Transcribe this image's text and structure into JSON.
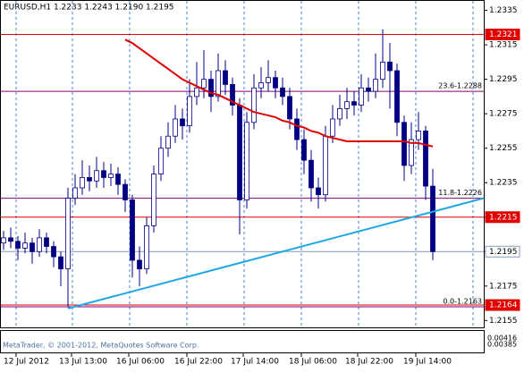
{
  "chart_data": {
    "type": "candlestick",
    "title": "EURUSD,H1  1.2233 1.2243 1.2190 1.2195",
    "ylim": [
      1.215,
      1.2341
    ],
    "yticks": [
      1.2335,
      1.2315,
      1.2295,
      1.2275,
      1.2255,
      1.2235,
      1.2215,
      1.2195,
      1.2175,
      1.2155
    ],
    "x_labels": [
      "12 Jul 2012",
      "13 Jul 13:00",
      "16 Jul 06:00",
      "16 Jul 22:00",
      "17 Jul 14:00",
      "18 Jul 06:00",
      "18 Jul 22:00",
      "19 Jul 14:00"
    ],
    "up_color": "#ffffff",
    "down_color": "#000080",
    "outline_color": "#000080",
    "candles": [
      [
        1.22,
        1.2207,
        1.2196,
        1.2203
      ],
      [
        1.2203,
        1.2209,
        1.2197,
        1.2201
      ],
      [
        1.2201,
        1.2204,
        1.219,
        1.2197
      ],
      [
        1.2197,
        1.2206,
        1.2194,
        1.22
      ],
      [
        1.22,
        1.2203,
        1.2188,
        1.2195
      ],
      [
        1.2195,
        1.2208,
        1.2192,
        1.2203
      ],
      [
        1.2203,
        1.2206,
        1.2194,
        1.2198
      ],
      [
        1.2198,
        1.2201,
        1.2186,
        1.2192
      ],
      [
        1.2192,
        1.2195,
        1.2175,
        1.2185
      ],
      [
        1.2185,
        1.2232,
        1.2163,
        1.2226
      ],
      [
        1.2226,
        1.224,
        1.2222,
        1.2232
      ],
      [
        1.2232,
        1.2248,
        1.2228,
        1.2238
      ],
      [
        1.2238,
        1.2245,
        1.223,
        1.2236
      ],
      [
        1.2236,
        1.225,
        1.2232,
        1.2242
      ],
      [
        1.2242,
        1.2247,
        1.2232,
        1.2238
      ],
      [
        1.2238,
        1.2246,
        1.2233,
        1.224
      ],
      [
        1.224,
        1.2244,
        1.2228,
        1.2234
      ],
      [
        1.2234,
        1.2237,
        1.2218,
        1.2225
      ],
      [
        1.2225,
        1.2228,
        1.218,
        1.219
      ],
      [
        1.219,
        1.2198,
        1.2175,
        1.2185
      ],
      [
        1.2185,
        1.2215,
        1.2182,
        1.221
      ],
      [
        1.221,
        1.2245,
        1.2206,
        1.224
      ],
      [
        1.224,
        1.2262,
        1.2236,
        1.2255
      ],
      [
        1.2255,
        1.227,
        1.225,
        1.2262
      ],
      [
        1.2262,
        1.228,
        1.2258,
        1.2272
      ],
      [
        1.2272,
        1.2278,
        1.226,
        1.2268
      ],
      [
        1.2268,
        1.2295,
        1.2264,
        1.2285
      ],
      [
        1.2285,
        1.2305,
        1.228,
        1.229
      ],
      [
        1.229,
        1.2312,
        1.2284,
        1.2295
      ],
      [
        1.2295,
        1.23,
        1.2276,
        1.2285
      ],
      [
        1.2285,
        1.231,
        1.2282,
        1.23
      ],
      [
        1.23,
        1.2306,
        1.2286,
        1.2292
      ],
      [
        1.2292,
        1.2296,
        1.2274,
        1.228
      ],
      [
        1.228,
        1.2284,
        1.2205,
        1.2225
      ],
      [
        1.2225,
        1.2276,
        1.222,
        1.227
      ],
      [
        1.227,
        1.2298,
        1.2266,
        1.229
      ],
      [
        1.229,
        1.2302,
        1.2284,
        1.2293
      ],
      [
        1.2293,
        1.2306,
        1.2288,
        1.2296
      ],
      [
        1.2296,
        1.23,
        1.2284,
        1.229
      ],
      [
        1.229,
        1.2296,
        1.228,
        1.2285
      ],
      [
        1.2285,
        1.229,
        1.2266,
        1.2272
      ],
      [
        1.2272,
        1.2278,
        1.2254,
        1.226
      ],
      [
        1.226,
        1.2266,
        1.224,
        1.2248
      ],
      [
        1.2248,
        1.2254,
        1.2224,
        1.2232
      ],
      [
        1.2232,
        1.2238,
        1.222,
        1.2228
      ],
      [
        1.2228,
        1.2268,
        1.2224,
        1.2262
      ],
      [
        1.2262,
        1.228,
        1.2258,
        1.2272
      ],
      [
        1.2272,
        1.2286,
        1.2268,
        1.2278
      ],
      [
        1.2278,
        1.229,
        1.2272,
        1.2282
      ],
      [
        1.2282,
        1.2288,
        1.2274,
        1.228
      ],
      [
        1.228,
        1.2298,
        1.2276,
        1.229
      ],
      [
        1.229,
        1.2296,
        1.2282,
        1.2288
      ],
      [
        1.2288,
        1.231,
        1.2284,
        1.2295
      ],
      [
        1.2295,
        1.2324,
        1.229,
        1.2305
      ],
      [
        1.2305,
        1.2316,
        1.2278,
        1.23
      ],
      [
        1.23,
        1.2304,
        1.2262,
        1.227
      ],
      [
        1.227,
        1.2274,
        1.2236,
        1.2245
      ],
      [
        1.2245,
        1.227,
        1.224,
        1.226
      ],
      [
        1.226,
        1.2276,
        1.2254,
        1.2265
      ],
      [
        1.2265,
        1.2268,
        1.2225,
        1.2233
      ],
      [
        1.2233,
        1.2243,
        1.219,
        1.2195
      ]
    ],
    "ma": {
      "color": "#e00000",
      "values": [
        null,
        null,
        null,
        null,
        null,
        null,
        null,
        null,
        null,
        null,
        null,
        null,
        null,
        null,
        null,
        null,
        null,
        1.2318,
        1.2316,
        1.2313,
        1.231,
        1.2307,
        1.2304,
        1.2301,
        1.2298,
        1.2295,
        1.2293,
        1.2291,
        1.2289,
        1.2287,
        1.2286,
        1.2284,
        1.2282,
        1.228,
        1.2278,
        1.2276,
        1.2275,
        1.2274,
        1.2273,
        1.2271,
        1.227,
        1.2268,
        1.2267,
        1.2265,
        1.2264,
        1.2262,
        1.2261,
        1.226,
        1.2259,
        1.2259,
        1.2259,
        1.2259,
        1.2259,
        1.2259,
        1.2259,
        1.2259,
        1.2259,
        1.2258,
        1.2258,
        1.2257,
        1.2256
      ]
    },
    "trendline": {
      "color": "#1ea8e6",
      "values": [
        1.2162,
        1.2226
      ]
    },
    "levels": [
      {
        "value": 1.2321,
        "color": "#e00000",
        "boxed": true
      },
      {
        "value": 1.2215,
        "color": "#e00000",
        "boxed": true
      },
      {
        "value": 1.2164,
        "color": "#e00000",
        "boxed": true
      },
      {
        "value": 1.2195,
        "color": "#8899bb",
        "boxed": true
      }
    ],
    "fibo": {
      "color": "#800080",
      "levels": [
        {
          "value": 1.2288,
          "label": "23.6-1.2288"
        },
        {
          "value": 1.2226,
          "label": "11.8-1.2226"
        },
        {
          "value": 1.2163,
          "label": "0.0-1.2163"
        }
      ]
    },
    "subwindow_ticks": [
      0.00416,
      0.00385
    ],
    "copyright": "MetaTrader, © 2001-2012, MetaQuotes Software Corp."
  }
}
